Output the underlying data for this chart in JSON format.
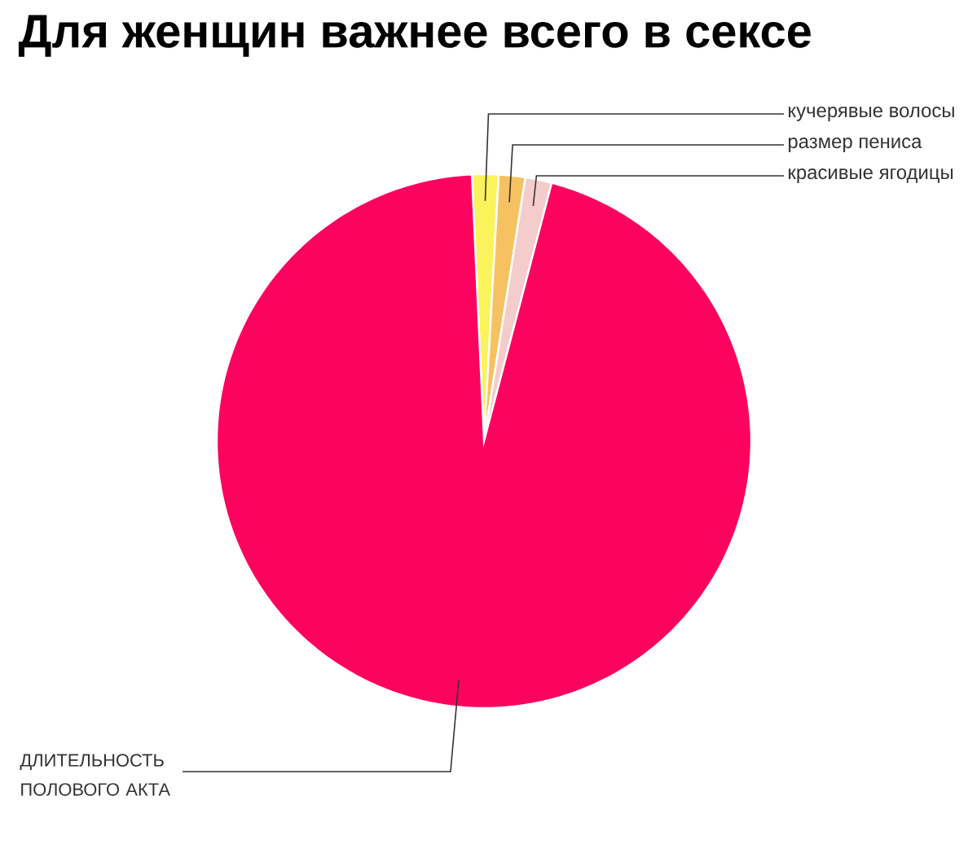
{
  "chart_data": {
    "type": "pie",
    "title": "Для женщин важнее всего в сексе",
    "categories": [
      "кучерявые волосы",
      "размер пениса",
      "красивые ягодицы",
      "ДЛИТЕЛЬНОСТЬ ПОЛОВОГО АКТА"
    ],
    "values": [
      1.6,
      1.6,
      1.6,
      95.2
    ],
    "colors": [
      "#fbf35c",
      "#f6c261",
      "#f4cccc",
      "#fc035f"
    ]
  }
}
